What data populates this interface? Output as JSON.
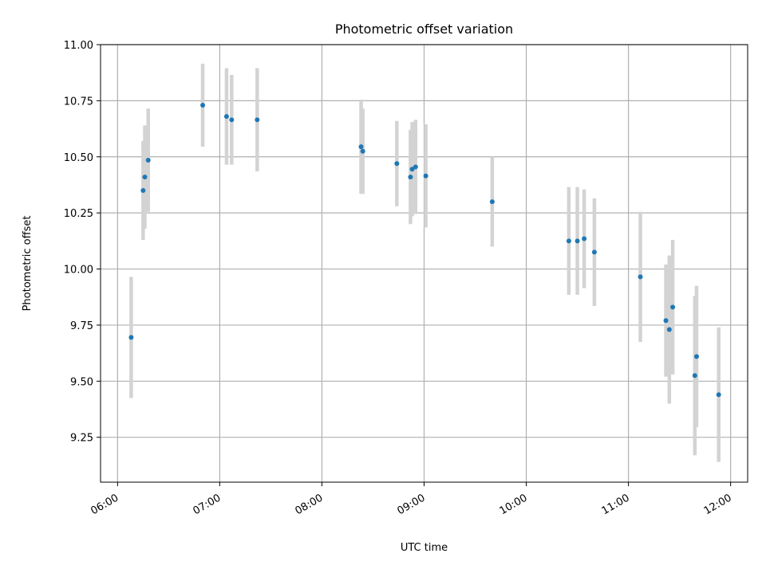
{
  "chart_data": {
    "type": "scatter",
    "title": "Photometric offset variation",
    "xlabel": "UTC time",
    "ylabel": "Photometric offset",
    "xlim": [
      "05:50",
      "12:10"
    ],
    "ylim": [
      9.05,
      11.0
    ],
    "x_ticks": [
      "06:00",
      "07:00",
      "08:00",
      "09:00",
      "10:00",
      "11:00",
      "12:00"
    ],
    "y_ticks": [
      "9.25",
      "9.50",
      "9.75",
      "10.00",
      "10.25",
      "10.50",
      "10.75",
      "11.00"
    ],
    "grid": true,
    "point_color": "#1f77b4",
    "errorbar_color": "#d3d3d3",
    "points": [
      {
        "x": "06:08",
        "y": 9.695,
        "err": 0.27
      },
      {
        "x": "06:15",
        "y": 10.35,
        "err": 0.22
      },
      {
        "x": "06:16",
        "y": 10.41,
        "err": 0.23
      },
      {
        "x": "06:18",
        "y": 10.485,
        "err": 0.23
      },
      {
        "x": "06:50",
        "y": 10.73,
        "err": 0.185
      },
      {
        "x": "07:04",
        "y": 10.68,
        "err": 0.215
      },
      {
        "x": "07:07",
        "y": 10.665,
        "err": 0.2
      },
      {
        "x": "07:22",
        "y": 10.665,
        "err": 0.23
      },
      {
        "x": "08:23",
        "y": 10.545,
        "err": 0.21
      },
      {
        "x": "08:24",
        "y": 10.525,
        "err": 0.19
      },
      {
        "x": "08:44",
        "y": 10.47,
        "err": 0.19
      },
      {
        "x": "08:52",
        "y": 10.41,
        "err": 0.21
      },
      {
        "x": "08:53",
        "y": 10.445,
        "err": 0.21
      },
      {
        "x": "08:55",
        "y": 10.455,
        "err": 0.21
      },
      {
        "x": "09:01",
        "y": 10.415,
        "err": 0.23
      },
      {
        "x": "09:40",
        "y": 10.3,
        "err": 0.2
      },
      {
        "x": "10:25",
        "y": 10.125,
        "err": 0.24
      },
      {
        "x": "10:30",
        "y": 10.125,
        "err": 0.24
      },
      {
        "x": "10:34",
        "y": 10.135,
        "err": 0.22
      },
      {
        "x": "10:40",
        "y": 10.075,
        "err": 0.24
      },
      {
        "x": "11:07",
        "y": 9.965,
        "err": 0.29
      },
      {
        "x": "11:22",
        "y": 9.77,
        "err": 0.25
      },
      {
        "x": "11:24",
        "y": 9.73,
        "err": 0.33
      },
      {
        "x": "11:26",
        "y": 9.83,
        "err": 0.3
      },
      {
        "x": "11:39",
        "y": 9.525,
        "err": 0.355
      },
      {
        "x": "11:40",
        "y": 9.61,
        "err": 0.315
      },
      {
        "x": "11:53",
        "y": 9.44,
        "err": 0.3
      }
    ]
  }
}
